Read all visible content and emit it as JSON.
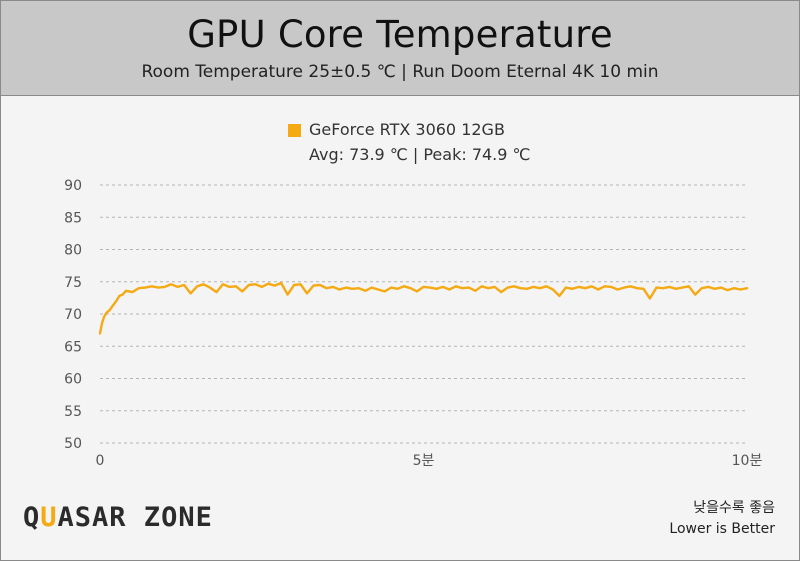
{
  "header": {
    "title": "GPU Core Temperature",
    "subtitle": "Room Temperature 25±0.5 ℃  |  Run Doom Eternal 4K 10 min"
  },
  "legend": {
    "label": "GeForce RTX 3060 12GB",
    "stats": "Avg: 73.9 ℃  |  Peak: 74.9 ℃",
    "color": "#f5a912"
  },
  "footer": {
    "logo_prefix": "Q",
    "logo_accent": "U",
    "logo_rest": "ASAR ZONE",
    "note_ko": "낮을수록 좋음",
    "note_en": "Lower is Better"
  },
  "chart_data": {
    "type": "line",
    "title": "GPU Core Temperature",
    "xlim": [
      0,
      10
    ],
    "ylim": [
      50,
      90
    ],
    "y_ticks": [
      50,
      55,
      60,
      65,
      70,
      75,
      80,
      85,
      90
    ],
    "x_ticks": [
      {
        "value": 0,
        "label": "0"
      },
      {
        "value": 5,
        "label": "5분"
      },
      {
        "value": 10,
        "label": "10분"
      }
    ],
    "grid": true,
    "legend_position": "top-center",
    "series": [
      {
        "name": "GeForce RTX 3060 12GB",
        "color": "#f5a912",
        "x": [
          0,
          0.03,
          0.06,
          0.1,
          0.15,
          0.2,
          0.25,
          0.3,
          0.35,
          0.4,
          0.5,
          0.6,
          0.7,
          0.8,
          0.9,
          1.0,
          1.1,
          1.2,
          1.3,
          1.4,
          1.5,
          1.6,
          1.7,
          1.8,
          1.9,
          2.0,
          2.1,
          2.2,
          2.3,
          2.4,
          2.5,
          2.6,
          2.7,
          2.8,
          2.9,
          3.0,
          3.1,
          3.2,
          3.3,
          3.4,
          3.5,
          3.6,
          3.7,
          3.8,
          3.9,
          4.0,
          4.1,
          4.2,
          4.3,
          4.4,
          4.5,
          4.6,
          4.7,
          4.8,
          4.9,
          5.0,
          5.1,
          5.2,
          5.3,
          5.4,
          5.5,
          5.6,
          5.7,
          5.8,
          5.9,
          6.0,
          6.1,
          6.2,
          6.3,
          6.4,
          6.5,
          6.6,
          6.7,
          6.8,
          6.9,
          7.0,
          7.1,
          7.2,
          7.3,
          7.4,
          7.5,
          7.6,
          7.7,
          7.8,
          7.9,
          8.0,
          8.1,
          8.2,
          8.3,
          8.4,
          8.5,
          8.6,
          8.7,
          8.8,
          8.9,
          9.0,
          9.1,
          9.2,
          9.3,
          9.4,
          9.5,
          9.6,
          9.7,
          9.8,
          9.9,
          10.0
        ],
        "values": [
          67.0,
          68.5,
          69.5,
          70.2,
          70.6,
          71.3,
          72.0,
          72.8,
          73.0,
          73.6,
          73.4,
          74.0,
          74.1,
          74.3,
          74.1,
          74.2,
          74.6,
          74.2,
          74.5,
          73.2,
          74.3,
          74.6,
          74.1,
          73.4,
          74.6,
          74.2,
          74.3,
          73.5,
          74.5,
          74.6,
          74.2,
          74.7,
          74.4,
          74.8,
          73.0,
          74.5,
          74.6,
          73.2,
          74.4,
          74.5,
          74.0,
          74.2,
          73.8,
          74.1,
          73.9,
          74.0,
          73.6,
          74.1,
          73.8,
          73.5,
          74.1,
          73.9,
          74.3,
          74.0,
          73.5,
          74.2,
          74.1,
          73.9,
          74.2,
          73.8,
          74.3,
          74.0,
          74.1,
          73.6,
          74.3,
          74.0,
          74.2,
          73.4,
          74.1,
          74.3,
          74.0,
          73.9,
          74.2,
          74.0,
          74.3,
          73.8,
          72.8,
          74.1,
          73.9,
          74.2,
          74.0,
          74.3,
          73.8,
          74.3,
          74.2,
          73.8,
          74.1,
          74.3,
          74.0,
          73.9,
          72.4,
          74.1,
          74.0,
          74.2,
          73.9,
          74.1,
          74.3,
          73.0,
          74.0,
          74.2,
          73.9,
          74.1,
          73.7,
          74.0,
          73.8,
          74.0
        ]
      }
    ]
  }
}
